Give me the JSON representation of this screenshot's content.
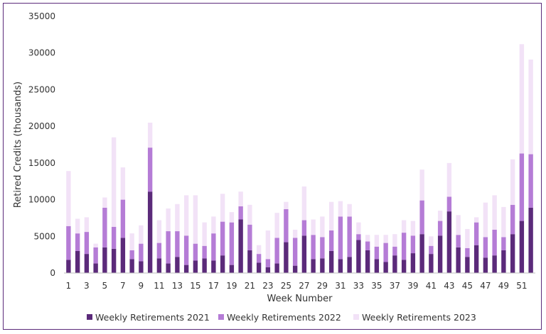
{
  "chart_data": {
    "type": "bar",
    "stacked": true,
    "title": "",
    "xlabel": "Week Number",
    "ylabel": "Retired Credits (thousands)",
    "ylim": [
      0,
      35000
    ],
    "yticks": [
      0,
      5000,
      10000,
      15000,
      20000,
      25000,
      30000,
      35000
    ],
    "categories": [
      1,
      2,
      3,
      4,
      5,
      6,
      7,
      8,
      9,
      10,
      11,
      12,
      13,
      14,
      15,
      16,
      17,
      18,
      19,
      20,
      21,
      22,
      23,
      24,
      25,
      26,
      27,
      28,
      29,
      30,
      31,
      32,
      33,
      34,
      35,
      36,
      37,
      38,
      39,
      40,
      41,
      42,
      43,
      44,
      45,
      46,
      47,
      48,
      49,
      50,
      51,
      52
    ],
    "xtick_labels": [
      "1",
      "",
      "3",
      "",
      "5",
      "",
      "7",
      "",
      "9",
      "",
      "11",
      "",
      "13",
      "",
      "15",
      "",
      "17",
      "",
      "19",
      "",
      "21",
      "",
      "23",
      "",
      "25",
      "",
      "27",
      "",
      "29",
      "",
      "31",
      "",
      "33",
      "",
      "35",
      "",
      "37",
      "",
      "39",
      "",
      "41",
      "",
      "43",
      "",
      "45",
      "",
      "47",
      "",
      "49",
      "",
      "51",
      ""
    ],
    "grid": false,
    "legend_position": "bottom",
    "series": [
      {
        "name": "Weekly Retirements 2021",
        "color": "#5b2a7a",
        "values": [
          1800,
          3000,
          2600,
          1300,
          3500,
          3300,
          4800,
          1900,
          1600,
          11100,
          2000,
          1300,
          2200,
          1100,
          1700,
          2000,
          1700,
          2400,
          1100,
          7300,
          3100,
          1400,
          800,
          1300,
          4200,
          1000,
          5100,
          1900,
          2000,
          3000,
          1900,
          2200,
          4500,
          3100,
          1900,
          1500,
          2400,
          1800,
          2700,
          5300,
          2600,
          5100,
          8400,
          3500,
          2200,
          3800,
          2100,
          2400,
          3100,
          5300,
          7100,
          8900
        ]
      },
      {
        "name": "Weekly Retirements 2022",
        "color": "#b57cd6",
        "values": [
          4600,
          2400,
          3000,
          2200,
          5400,
          3000,
          5200,
          1200,
          2400,
          6000,
          2100,
          4400,
          3500,
          4000,
          2300,
          1700,
          3700,
          4600,
          5800,
          1800,
          3500,
          1200,
          1100,
          3500,
          4500,
          3800,
          2100,
          3300,
          2900,
          2800,
          5800,
          5500,
          800,
          1200,
          1700,
          2600,
          1200,
          3700,
          2400,
          4600,
          1100,
          2000,
          2000,
          1700,
          1200,
          3100,
          2800,
          3500,
          1800,
          4000,
          9200,
          7300
        ]
      },
      {
        "name": "Weekly Retirements 2023",
        "color": "#f2e2f7",
        "values": [
          7500,
          2000,
          2000,
          500,
          1400,
          12200,
          4400,
          2300,
          2500,
          3400,
          3100,
          3100,
          3700,
          5500,
          6600,
          3200,
          2300,
          3800,
          1400,
          2000,
          2700,
          1200,
          3900,
          3400,
          1000,
          1100,
          4600,
          2100,
          2800,
          3900,
          2100,
          1700,
          1600,
          900,
          1600,
          1100,
          1700,
          1700,
          2000,
          4200,
          1300,
          1400,
          4600,
          2700,
          2600,
          700,
          4700,
          4700,
          4100,
          6200,
          14900,
          12900
        ]
      }
    ]
  }
}
